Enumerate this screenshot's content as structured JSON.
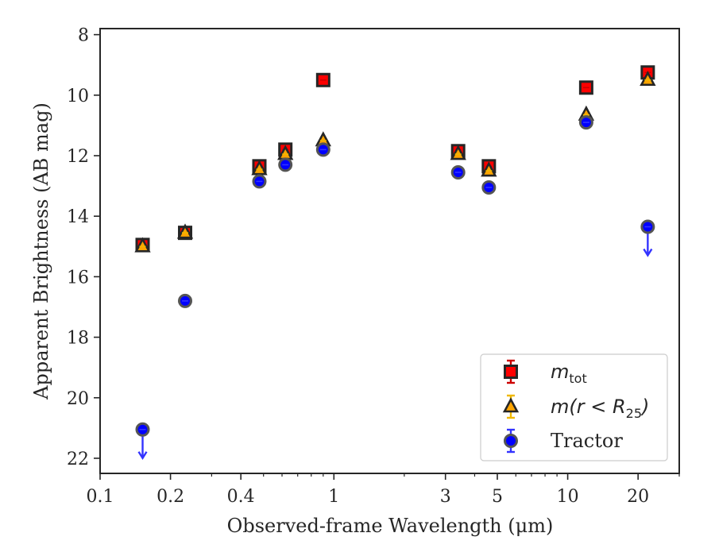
{
  "chart_data": {
    "type": "scatter",
    "title": "",
    "xlabel": "Observed-frame Wavelength (μm)",
    "ylabel": "Apparent Brightness (AB mag)",
    "xscale": "log",
    "xlim": [
      0.1,
      30
    ],
    "ylim": [
      22.5,
      7.8
    ],
    "y_inverted": true,
    "x_ticks": [
      0.1,
      0.2,
      0.4,
      1,
      3,
      5,
      10,
      20
    ],
    "x_tick_labels": [
      "0.1",
      "0.2",
      "0.4",
      "1",
      "3",
      "5",
      "10",
      "20"
    ],
    "y_ticks": [
      8,
      10,
      12,
      14,
      16,
      18,
      20,
      22
    ],
    "y_tick_labels": [
      "8",
      "10",
      "12",
      "14",
      "16",
      "18",
      "20",
      "22"
    ],
    "grid": false,
    "legend_position": "bottom-right",
    "series": [
      {
        "name": "m_tot",
        "marker": "square",
        "color": "#ff0000",
        "error_color": "#cc0000",
        "points": [
          {
            "x": 0.152,
            "y": 14.95
          },
          {
            "x": 0.231,
            "y": 14.55
          },
          {
            "x": 0.48,
            "y": 12.35
          },
          {
            "x": 0.62,
            "y": 11.8
          },
          {
            "x": 0.9,
            "y": 9.5
          },
          {
            "x": 3.4,
            "y": 11.85
          },
          {
            "x": 4.6,
            "y": 12.35
          },
          {
            "x": 12.0,
            "y": 9.75
          },
          {
            "x": 22.0,
            "y": 9.25
          }
        ]
      },
      {
        "name": "m(r < R25)",
        "marker": "triangle",
        "color": "#ffa500",
        "error_color": "#f0b800",
        "points": [
          {
            "x": 0.152,
            "y": 15.0
          },
          {
            "x": 0.231,
            "y": 14.55
          },
          {
            "x": 0.48,
            "y": 12.45
          },
          {
            "x": 0.62,
            "y": 11.95
          },
          {
            "x": 0.9,
            "y": 11.5
          },
          {
            "x": 3.4,
            "y": 11.95
          },
          {
            "x": 4.6,
            "y": 12.5
          },
          {
            "x": 12.0,
            "y": 10.65
          },
          {
            "x": 22.0,
            "y": 9.5
          }
        ]
      },
      {
        "name": "Tractor",
        "marker": "circle",
        "color": "#0000ff",
        "error_color": "#3333ff",
        "points": [
          {
            "x": 0.152,
            "y": 21.05,
            "upper_limit": true
          },
          {
            "x": 0.231,
            "y": 16.8
          },
          {
            "x": 0.48,
            "y": 12.85
          },
          {
            "x": 0.62,
            "y": 12.3
          },
          {
            "x": 0.9,
            "y": 11.8
          },
          {
            "x": 3.4,
            "y": 12.55
          },
          {
            "x": 4.6,
            "y": 13.05
          },
          {
            "x": 12.0,
            "y": 10.9
          },
          {
            "x": 22.0,
            "y": 14.35,
            "upper_limit": true
          }
        ]
      }
    ],
    "legend": [
      {
        "label_math": "m",
        "label_sub": "tot",
        "label_rest": "",
        "series": 0
      },
      {
        "label_math": "m(r < R",
        "label_sub": "25",
        "label_rest": ")",
        "series": 1
      },
      {
        "label_plain": "Tractor",
        "series": 2
      }
    ]
  }
}
